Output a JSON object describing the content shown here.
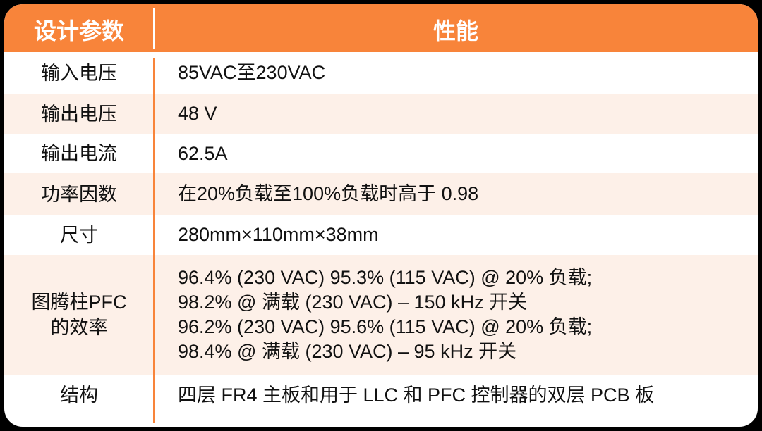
{
  "colors": {
    "header": "#F8843A",
    "alt_row": "#FDF0E8",
    "divider": "#F8843A"
  },
  "header": {
    "param": "设计参数",
    "performance": "性能"
  },
  "rows": [
    {
      "param": "输入电压",
      "value": [
        "85VAC至230VAC"
      ]
    },
    {
      "param": "输出电压",
      "value": [
        "48 V"
      ]
    },
    {
      "param": "输出电流",
      "value": [
        "62.5A"
      ]
    },
    {
      "param": "功率因数",
      "value": [
        "在20%负载至100%负载时高于 0.98"
      ]
    },
    {
      "param": "尺寸",
      "value": [
        "280mm×110mm×38mm"
      ]
    },
    {
      "param": "图腾柱PFC的效率",
      "value": [
        "96.4% (230 VAC) 95.3% (115 VAC) @ 20% 负载;",
        "98.2% @ 满载 (230 VAC) – 150 kHz 开关",
        "96.2% (230 VAC) 95.6% (115 VAC) @ 20% 负载;",
        "98.4% @ 满载 (230 VAC) – 95 kHz 开关"
      ]
    },
    {
      "param": "结构",
      "value": [
        "四层 FR4 主板和用于 LLC 和 PFC 控制器的双层 PCB 板"
      ]
    }
  ]
}
